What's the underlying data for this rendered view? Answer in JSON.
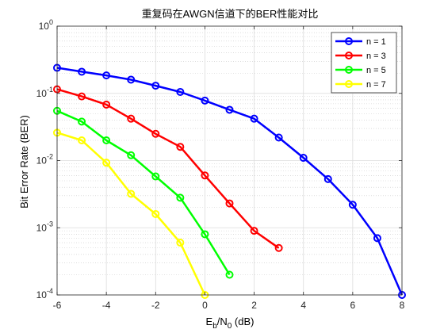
{
  "chart_data": {
    "type": "line",
    "title": "重复码在AWGN信道下的BER性能对比",
    "xlabel": {
      "main": "E",
      "sub1": "b",
      "mid": "/N",
      "sub2": "0",
      "tail": " (dB)"
    },
    "ylabel": "Bit Error Rate (BER)",
    "xlim": [
      -6,
      8
    ],
    "ylim": [
      0.0001,
      1
    ],
    "yscale": "log",
    "grid": true,
    "minor_grid": true,
    "x_ticks": [
      -6,
      -4,
      -2,
      0,
      2,
      4,
      6,
      8
    ],
    "x_tick_labels": [
      "-6",
      "-4",
      "-2",
      "0",
      "2",
      "4",
      "6",
      "8"
    ],
    "y_ticks": [
      {
        "value": 0.0001,
        "base": "10",
        "exp": "-4"
      },
      {
        "value": 0.001,
        "base": "10",
        "exp": "-3"
      },
      {
        "value": 0.01,
        "base": "10",
        "exp": "-2"
      },
      {
        "value": 0.1,
        "base": "10",
        "exp": "-1"
      },
      {
        "value": 1,
        "base": "10",
        "exp": "0"
      }
    ],
    "legend_position": "top-right",
    "series": [
      {
        "name": "n = 1",
        "color": "#0000ff",
        "x": [
          -6,
          -5,
          -4,
          -3,
          -2,
          -1,
          0,
          1,
          2,
          3,
          4,
          5,
          6,
          7,
          8
        ],
        "y": [
          0.24,
          0.21,
          0.185,
          0.16,
          0.13,
          0.105,
          0.078,
          0.057,
          0.042,
          0.022,
          0.011,
          0.0053,
          0.0022,
          0.0007,
          0.0001
        ]
      },
      {
        "name": "n = 3",
        "color": "#ff0000",
        "x": [
          -6,
          -5,
          -4,
          -3,
          -2,
          -1,
          0,
          1,
          2,
          3
        ],
        "y": [
          0.115,
          0.09,
          0.068,
          0.042,
          0.025,
          0.016,
          0.006,
          0.0023,
          0.0009,
          0.0005
        ]
      },
      {
        "name": "n = 5",
        "color": "#00ff00",
        "x": [
          -6,
          -5,
          -4,
          -3,
          -2,
          -1,
          0,
          1
        ],
        "y": [
          0.055,
          0.038,
          0.02,
          0.012,
          0.0058,
          0.0028,
          0.0008,
          0.0002
        ]
      },
      {
        "name": "n = 7",
        "color": "#ffff00",
        "x": [
          -6,
          -5,
          -4,
          -3,
          -2,
          -1,
          0
        ],
        "y": [
          0.026,
          0.02,
          0.0093,
          0.0032,
          0.0016,
          0.0006,
          0.0001
        ]
      }
    ]
  }
}
